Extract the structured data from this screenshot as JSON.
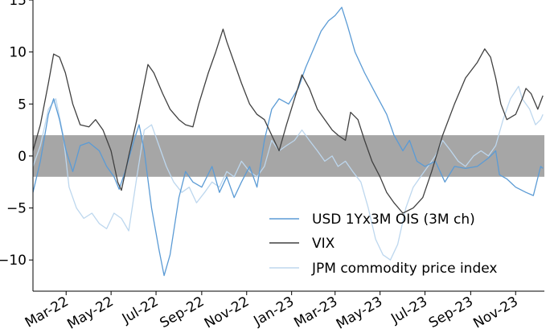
{
  "chart_data": {
    "type": "line",
    "title": "",
    "xlabel": "",
    "ylabel": "",
    "ylim": [
      -13,
      15
    ],
    "y_ticks": [
      -10,
      -5,
      0,
      5,
      10,
      15
    ],
    "x_range": [
      "2022-01-15",
      "2023-12-10"
    ],
    "x_ticks": [
      "Mar-22",
      "May-22",
      "Jul-22",
      "Sep-22",
      "Nov-22",
      "Jan-23",
      "Mar-23",
      "May-23",
      "Jul-23",
      "Sep-23",
      "Nov-23"
    ],
    "x_tick_dates": [
      "2022-03-01",
      "2022-05-01",
      "2022-07-01",
      "2022-09-01",
      "2022-11-01",
      "2023-01-01",
      "2023-03-01",
      "2023-05-01",
      "2023-07-01",
      "2023-09-01",
      "2023-11-01"
    ],
    "band": {
      "from": -2,
      "to": 2,
      "color": "#a6a6a6"
    },
    "grid": false,
    "legend_position": "lower-right",
    "series": [
      {
        "name": "USD 1Yx3M OIS (3M ch)",
        "color": "#5b9bd5",
        "points": [
          [
            "2022-01-15",
            -3.5
          ],
          [
            "2022-01-25",
            -0.5
          ],
          [
            "2022-02-05",
            4.0
          ],
          [
            "2022-02-12",
            5.5
          ],
          [
            "2022-02-20",
            3.5
          ],
          [
            "2022-03-01",
            0.5
          ],
          [
            "2022-03-10",
            -1.5
          ],
          [
            "2022-03-20",
            1.0
          ],
          [
            "2022-04-01",
            1.3
          ],
          [
            "2022-04-15",
            0.5
          ],
          [
            "2022-04-25",
            -1.0
          ],
          [
            "2022-05-05",
            -2.0
          ],
          [
            "2022-05-12",
            -3.2
          ],
          [
            "2022-05-20",
            -1.5
          ],
          [
            "2022-06-01",
            1.5
          ],
          [
            "2022-06-08",
            3.0
          ],
          [
            "2022-06-15",
            0.5
          ],
          [
            "2022-06-25",
            -5.0
          ],
          [
            "2022-07-05",
            -9.0
          ],
          [
            "2022-07-12",
            -11.5
          ],
          [
            "2022-07-20",
            -9.5
          ],
          [
            "2022-08-01",
            -4.0
          ],
          [
            "2022-08-10",
            -1.5
          ],
          [
            "2022-08-20",
            -2.5
          ],
          [
            "2022-09-01",
            -3.0
          ],
          [
            "2022-09-15",
            -1.0
          ],
          [
            "2022-09-25",
            -3.5
          ],
          [
            "2022-10-05",
            -2.0
          ],
          [
            "2022-10-15",
            -4.0
          ],
          [
            "2022-10-25",
            -2.5
          ],
          [
            "2022-11-05",
            -1.0
          ],
          [
            "2022-11-15",
            -3.0
          ],
          [
            "2022-11-25",
            1.5
          ],
          [
            "2022-12-05",
            4.5
          ],
          [
            "2022-12-15",
            5.5
          ],
          [
            "2022-12-28",
            5.0
          ],
          [
            "2023-01-10",
            6.5
          ],
          [
            "2023-01-20",
            8.5
          ],
          [
            "2023-02-01",
            10.5
          ],
          [
            "2023-02-10",
            12.0
          ],
          [
            "2023-02-20",
            13.0
          ],
          [
            "2023-03-01",
            13.5
          ],
          [
            "2023-03-10",
            14.3
          ],
          [
            "2023-03-18",
            12.5
          ],
          [
            "2023-03-28",
            10.0
          ],
          [
            "2023-04-10",
            8.0
          ],
          [
            "2023-04-25",
            6.0
          ],
          [
            "2023-05-10",
            4.0
          ],
          [
            "2023-05-20",
            2.0
          ],
          [
            "2023-06-01",
            0.5
          ],
          [
            "2023-06-10",
            1.5
          ],
          [
            "2023-06-20",
            -0.5
          ],
          [
            "2023-07-01",
            -1.0
          ],
          [
            "2023-07-15",
            -0.5
          ],
          [
            "2023-07-28",
            -2.5
          ],
          [
            "2023-08-10",
            -1.0
          ],
          [
            "2023-08-25",
            -1.2
          ],
          [
            "2023-09-10",
            -1.0
          ],
          [
            "2023-09-25",
            -0.2
          ],
          [
            "2023-10-05",
            0.5
          ],
          [
            "2023-10-10",
            -1.8
          ],
          [
            "2023-10-20",
            -2.2
          ],
          [
            "2023-11-01",
            -3.0
          ],
          [
            "2023-11-15",
            -3.5
          ],
          [
            "2023-11-25",
            -3.8
          ],
          [
            "2023-12-05",
            -1.0
          ],
          [
            "2023-12-08",
            -1.2
          ]
        ]
      },
      {
        "name": "VIX",
        "color": "#404040",
        "points": [
          [
            "2022-01-15",
            0.5
          ],
          [
            "2022-01-25",
            3.0
          ],
          [
            "2022-02-05",
            7.0
          ],
          [
            "2022-02-12",
            9.8
          ],
          [
            "2022-02-20",
            9.5
          ],
          [
            "2022-02-28",
            8.0
          ],
          [
            "2022-03-10",
            5.0
          ],
          [
            "2022-03-20",
            3.0
          ],
          [
            "2022-04-01",
            2.8
          ],
          [
            "2022-04-10",
            3.5
          ],
          [
            "2022-04-20",
            2.5
          ],
          [
            "2022-05-01",
            0.5
          ],
          [
            "2022-05-10",
            -2.5
          ],
          [
            "2022-05-15",
            -3.3
          ],
          [
            "2022-05-25",
            0.0
          ],
          [
            "2022-06-05",
            3.5
          ],
          [
            "2022-06-15",
            7.0
          ],
          [
            "2022-06-20",
            8.8
          ],
          [
            "2022-06-28",
            8.0
          ],
          [
            "2022-07-10",
            6.0
          ],
          [
            "2022-07-20",
            4.5
          ],
          [
            "2022-08-01",
            3.5
          ],
          [
            "2022-08-10",
            3.0
          ],
          [
            "2022-08-20",
            2.8
          ],
          [
            "2022-08-28",
            5.0
          ],
          [
            "2022-09-10",
            8.0
          ],
          [
            "2022-09-20",
            10.0
          ],
          [
            "2022-09-30",
            12.2
          ],
          [
            "2022-10-05",
            11.0
          ],
          [
            "2022-10-15",
            9.0
          ],
          [
            "2022-10-25",
            7.0
          ],
          [
            "2022-11-05",
            5.0
          ],
          [
            "2022-11-15",
            4.0
          ],
          [
            "2022-11-25",
            3.5
          ],
          [
            "2022-12-05",
            2.0
          ],
          [
            "2022-12-15",
            0.5
          ],
          [
            "2022-12-25",
            3.0
          ],
          [
            "2023-01-05",
            5.5
          ],
          [
            "2023-01-15",
            7.8
          ],
          [
            "2023-01-25",
            6.5
          ],
          [
            "2023-02-05",
            4.5
          ],
          [
            "2023-02-15",
            3.5
          ],
          [
            "2023-02-25",
            2.5
          ],
          [
            "2023-03-05",
            2.0
          ],
          [
            "2023-03-15",
            1.5
          ],
          [
            "2023-03-22",
            4.2
          ],
          [
            "2023-04-01",
            3.5
          ],
          [
            "2023-04-10",
            1.5
          ],
          [
            "2023-04-20",
            -0.5
          ],
          [
            "2023-05-01",
            -2.0
          ],
          [
            "2023-05-10",
            -3.5
          ],
          [
            "2023-05-20",
            -4.5
          ],
          [
            "2023-06-01",
            -5.5
          ],
          [
            "2023-06-15",
            -5.0
          ],
          [
            "2023-06-28",
            -4.0
          ],
          [
            "2023-07-10",
            -1.5
          ],
          [
            "2023-07-25",
            2.0
          ],
          [
            "2023-08-10",
            5.0
          ],
          [
            "2023-08-25",
            7.5
          ],
          [
            "2023-09-10",
            9.0
          ],
          [
            "2023-09-20",
            10.3
          ],
          [
            "2023-09-28",
            9.5
          ],
          [
            "2023-10-05",
            7.5
          ],
          [
            "2023-10-12",
            5.0
          ],
          [
            "2023-10-20",
            3.5
          ],
          [
            "2023-11-01",
            4.0
          ],
          [
            "2023-11-10",
            5.5
          ],
          [
            "2023-11-15",
            6.5
          ],
          [
            "2023-11-22",
            6.0
          ],
          [
            "2023-12-01",
            4.5
          ],
          [
            "2023-12-08",
            5.8
          ]
        ]
      },
      {
        "name": "JPM commodity price index",
        "color": "#bdd7ee",
        "points": [
          [
            "2022-01-15",
            -1.0
          ],
          [
            "2022-01-25",
            1.0
          ],
          [
            "2022-02-05",
            4.5
          ],
          [
            "2022-02-15",
            5.5
          ],
          [
            "2022-02-25",
            2.0
          ],
          [
            "2022-03-05",
            -3.0
          ],
          [
            "2022-03-15",
            -5.0
          ],
          [
            "2022-03-25",
            -6.0
          ],
          [
            "2022-04-05",
            -5.5
          ],
          [
            "2022-04-15",
            -6.5
          ],
          [
            "2022-04-25",
            -7.0
          ],
          [
            "2022-05-05",
            -5.5
          ],
          [
            "2022-05-15",
            -6.0
          ],
          [
            "2022-05-25",
            -7.2
          ],
          [
            "2022-06-05",
            -2.0
          ],
          [
            "2022-06-15",
            2.5
          ],
          [
            "2022-06-25",
            3.0
          ],
          [
            "2022-07-05",
            1.0
          ],
          [
            "2022-07-15",
            -1.0
          ],
          [
            "2022-07-25",
            -2.5
          ],
          [
            "2022-08-05",
            -3.5
          ],
          [
            "2022-08-15",
            -3.0
          ],
          [
            "2022-08-25",
            -4.5
          ],
          [
            "2022-09-05",
            -3.5
          ],
          [
            "2022-09-15",
            -2.5
          ],
          [
            "2022-09-25",
            -3.0
          ],
          [
            "2022-10-05",
            -1.5
          ],
          [
            "2022-10-15",
            -2.0
          ],
          [
            "2022-10-25",
            -0.5
          ],
          [
            "2022-11-05",
            -1.5
          ],
          [
            "2022-11-15",
            -2.0
          ],
          [
            "2022-11-25",
            -1.0
          ],
          [
            "2022-12-05",
            1.5
          ],
          [
            "2022-12-15",
            0.5
          ],
          [
            "2022-12-25",
            1.0
          ],
          [
            "2023-01-05",
            1.5
          ],
          [
            "2023-01-15",
            2.5
          ],
          [
            "2023-01-25",
            1.5
          ],
          [
            "2023-02-05",
            0.5
          ],
          [
            "2023-02-15",
            -0.5
          ],
          [
            "2023-02-25",
            0.0
          ],
          [
            "2023-03-05",
            -1.0
          ],
          [
            "2023-03-15",
            -0.5
          ],
          [
            "2023-03-25",
            -1.5
          ],
          [
            "2023-04-05",
            -2.5
          ],
          [
            "2023-04-15",
            -5.0
          ],
          [
            "2023-04-25",
            -8.0
          ],
          [
            "2023-05-05",
            -9.5
          ],
          [
            "2023-05-15",
            -10.0
          ],
          [
            "2023-05-25",
            -8.5
          ],
          [
            "2023-06-05",
            -5.0
          ],
          [
            "2023-06-15",
            -3.0
          ],
          [
            "2023-06-25",
            -2.0
          ],
          [
            "2023-07-05",
            -1.0
          ],
          [
            "2023-07-15",
            0.0
          ],
          [
            "2023-07-25",
            1.5
          ],
          [
            "2023-08-05",
            0.5
          ],
          [
            "2023-08-15",
            -0.5
          ],
          [
            "2023-08-25",
            -1.0
          ],
          [
            "2023-09-05",
            0.0
          ],
          [
            "2023-09-15",
            0.5
          ],
          [
            "2023-09-25",
            0.0
          ],
          [
            "2023-10-05",
            1.0
          ],
          [
            "2023-10-15",
            3.5
          ],
          [
            "2023-10-25",
            5.5
          ],
          [
            "2023-11-05",
            6.7
          ],
          [
            "2023-11-10",
            5.5
          ],
          [
            "2023-11-20",
            4.5
          ],
          [
            "2023-11-28",
            3.0
          ],
          [
            "2023-12-05",
            3.5
          ],
          [
            "2023-12-08",
            4.0
          ]
        ]
      }
    ]
  }
}
